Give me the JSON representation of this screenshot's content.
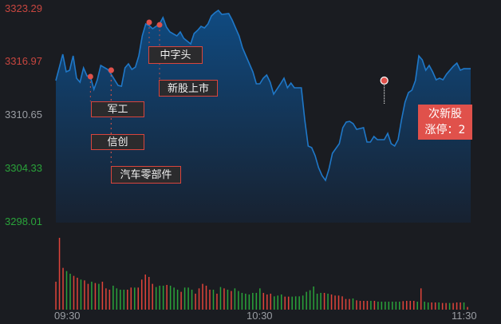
{
  "chart_data": {
    "type": "line",
    "title": "",
    "xlabel": "",
    "ylabel": "",
    "ylim": [
      3298.01,
      3323.29
    ],
    "y_ticks": [
      {
        "label": "3323.29",
        "value": 3323.29,
        "color": "#c8463f"
      },
      {
        "label": "3316.97",
        "value": 3316.97,
        "color": "#c8463f"
      },
      {
        "label": "3310.65",
        "value": 3310.65,
        "color": "#9a9da3"
      },
      {
        "label": "3304.33",
        "value": 3304.33,
        "color": "#2aa33a"
      },
      {
        "label": "3298.01",
        "value": 3298.01,
        "color": "#2aa33a"
      }
    ],
    "x_ticks": [
      "09:30",
      "10:30",
      "11:30"
    ],
    "xlim": [
      "09:30",
      "11:30"
    ],
    "grid": false,
    "colors": {
      "line": "#1f78c8",
      "up": "#e0443a",
      "down": "#2aa33a",
      "background": "#1a1c21",
      "tag_border": "#d9453d",
      "highlight": "#e0514b"
    },
    "price": {
      "time": [
        "09:30",
        "09:32",
        "09:33",
        "09:34",
        "09:35",
        "09:36",
        "09:37",
        "09:38",
        "09:39",
        "09:40",
        "09:41",
        "09:42",
        "09:43",
        "09:45",
        "09:46",
        "09:48",
        "09:49",
        "09:50",
        "09:51",
        "09:52",
        "09:53",
        "09:54",
        "09:55",
        "09:56",
        "09:57",
        "09:58",
        "10:00",
        "10:01",
        "10:02",
        "10:03",
        "10:05",
        "10:06",
        "10:07",
        "10:09",
        "10:10",
        "10:11",
        "10:12",
        "10:13",
        "10:14",
        "10:15",
        "10:16",
        "10:17",
        "10:18",
        "10:20",
        "10:21",
        "10:22",
        "10:23",
        "10:24",
        "10:25",
        "10:27",
        "10:28",
        "10:29",
        "10:30",
        "10:31",
        "10:32",
        "10:33",
        "10:35",
        "10:36",
        "10:37",
        "10:38",
        "10:39",
        "10:41",
        "10:42",
        "10:43",
        "10:44",
        "10:45",
        "10:46",
        "10:47",
        "10:48",
        "10:49",
        "10:50",
        "10:52",
        "10:53",
        "10:54",
        "10:55",
        "10:56",
        "10:57",
        "10:59",
        "11:00",
        "11:01",
        "11:02",
        "11:03",
        "11:05",
        "11:06",
        "11:07",
        "11:08",
        "11:09",
        "11:10",
        "11:11",
        "11:12",
        "11:13",
        "11:14",
        "11:15",
        "11:16",
        "11:17",
        "11:18",
        "11:19",
        "11:20",
        "11:21",
        "11:22",
        "11:23",
        "11:25",
        "11:26",
        "11:27",
        "11:28",
        "11:29",
        "11:30"
      ],
      "values": [
        3314.74,
        3317.84,
        3315.77,
        3315.96,
        3317.65,
        3315.02,
        3314.55,
        3316.24,
        3315.3,
        3315.21,
        3313.7,
        3314.83,
        3316.52,
        3316.05,
        3315.49,
        3314.17,
        3314.08,
        3316.24,
        3316.71,
        3316.05,
        3316.33,
        3317.65,
        3320.0,
        3321.41,
        3321.22,
        3320.85,
        3321.41,
        3322.16,
        3321.03,
        3320.47,
        3320.0,
        3320.47,
        3319.72,
        3319.06,
        3320.28,
        3320.66,
        3321.13,
        3320.94,
        3321.41,
        3322.35,
        3322.73,
        3323.01,
        3322.54,
        3322.63,
        3321.88,
        3320.94,
        3320.0,
        3318.59,
        3317.65,
        3315.77,
        3314.36,
        3314.36,
        3315.02,
        3315.4,
        3314.55,
        3313.14,
        3314.36,
        3315.02,
        3313.89,
        3314.45,
        3313.89,
        3313.89,
        3310.13,
        3307.03,
        3306.84,
        3305.9,
        3304.49,
        3303.55,
        3302.99,
        3304.31,
        3306.18,
        3307.31,
        3309.19,
        3309.85,
        3309.94,
        3309.66,
        3309.0,
        3309.19,
        3307.5,
        3307.5,
        3308.16,
        3307.78,
        3307.78,
        3308.53,
        3307.31,
        3307.03,
        3307.78,
        3310.13,
        3312.2,
        3313.33,
        3313.61,
        3314.74,
        3317.65,
        3317.18,
        3315.96,
        3316.52,
        3315.77,
        3314.83,
        3315.02,
        3314.83,
        3315.49,
        3316.43,
        3316.8,
        3315.96,
        3316.14,
        3316.14,
        3316.14
      ]
    },
    "volume": {
      "values": [
        105,
        270,
        157,
        145,
        135,
        127,
        120,
        113,
        110,
        97,
        105,
        100,
        97,
        105,
        80,
        75,
        90,
        80,
        75,
        75,
        75,
        83,
        83,
        83,
        113,
        132,
        123,
        97,
        85,
        90,
        90,
        93,
        90,
        83,
        75,
        67,
        83,
        83,
        75,
        60,
        80,
        97,
        90,
        75,
        75,
        60,
        85,
        80,
        75,
        70,
        80,
        70,
        63,
        60,
        57,
        63,
        63,
        80,
        63,
        57,
        60,
        50,
        53,
        57,
        49,
        49,
        49,
        50,
        50,
        53,
        67,
        73,
        87,
        60,
        63,
        63,
        60,
        57,
        53,
        53,
        50,
        40,
        40,
        42,
        35,
        33,
        33,
        33,
        33,
        33,
        30,
        30,
        30,
        30,
        30,
        30,
        30,
        32,
        33,
        33,
        33,
        30,
        80,
        30,
        27,
        27,
        27,
        27,
        25,
        25,
        25,
        25,
        27,
        27,
        27,
        10
      ],
      "direction": "rrrggrrgrrgrgrrrggggrrgrrrrrgggrggg rgggrrrrrgrgrgrggggggggrrrgggrrgggggggggrgrrrrrrgrrrrgrgggggggrrrrgrggrrgrrgrrrgrr"
    },
    "annotations": [
      {
        "label": "军工",
        "time": "09:40",
        "price": 3315.21
      },
      {
        "label": "信创",
        "time": "09:46",
        "price": 3315.96
      },
      {
        "label": "汽车零部件",
        "time": "09:46",
        "price": 3315.96
      },
      {
        "label": "中字头",
        "time": "09:57",
        "price": 3321.6
      },
      {
        "label": "新股上市",
        "time": "10:00",
        "price": 3321.3
      }
    ],
    "highlight": {
      "line1": "次新股",
      "line2": "涨停：2",
      "time": "11:05",
      "price": 3314.74
    }
  }
}
